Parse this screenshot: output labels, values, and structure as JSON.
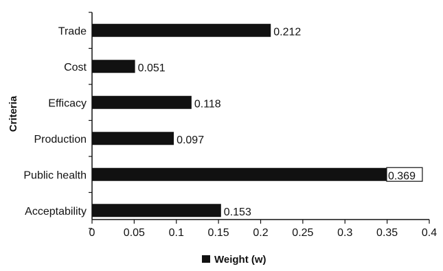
{
  "chart_data": {
    "type": "bar",
    "orientation": "horizontal",
    "categories": [
      "Trade",
      "Cost",
      "Efficacy",
      "Production",
      "Public health",
      "Acceptability"
    ],
    "series": [
      {
        "name": "Weight (w)",
        "values": [
          0.212,
          0.051,
          0.118,
          0.097,
          0.369,
          0.153
        ]
      }
    ],
    "data_labels": [
      "0.212",
      "0.051",
      "0.118",
      "0.097",
      "0.369",
      "0.153"
    ],
    "xlim": [
      0,
      0.4
    ],
    "xticks": [
      0,
      0.05,
      0.1,
      0.15,
      0.2,
      0.25,
      0.3,
      0.35,
      0.4
    ],
    "xtick_labels": [
      "0",
      "0.05",
      "0.1",
      "0.15",
      "0.2",
      "0.25",
      "0.3",
      "0.35",
      "0.4"
    ],
    "ylabel": "Criteria",
    "xlabel": "",
    "legend": {
      "label": "Weight (w)",
      "position": "bottom"
    },
    "boxed_label_index": 4,
    "grid": false,
    "colors": {
      "bar": "#111111",
      "axis": "#111111",
      "background": "#ffffff"
    }
  }
}
